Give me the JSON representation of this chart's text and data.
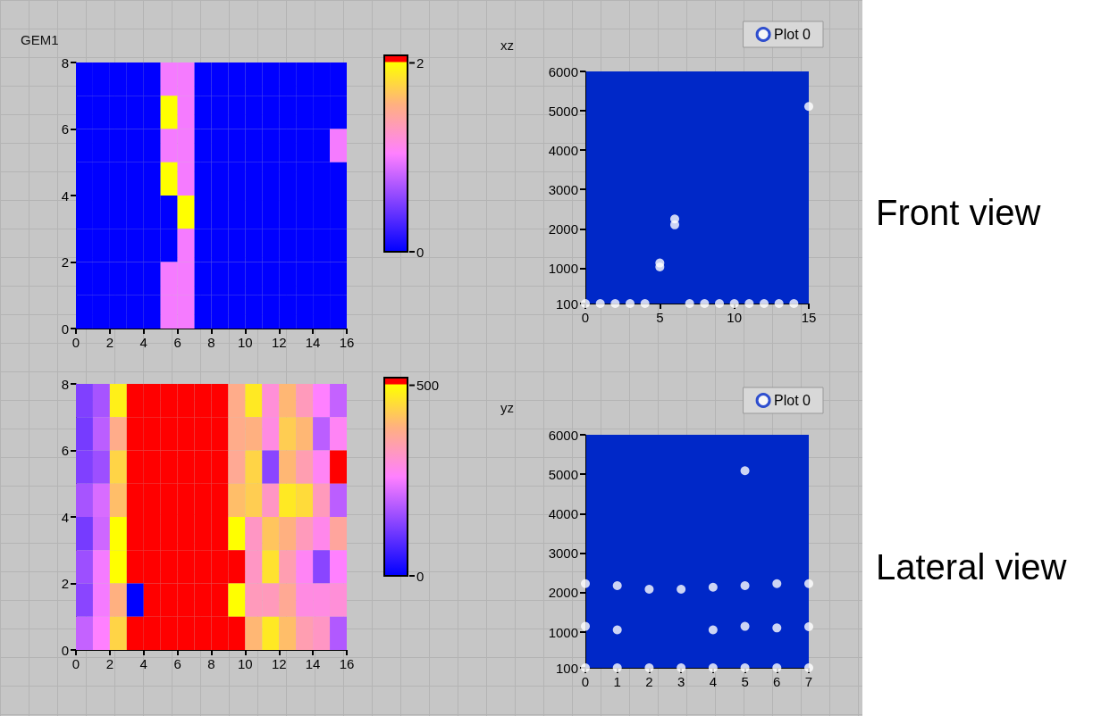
{
  "chart_data": [
    {
      "type": "heatmap",
      "title": "GEM1",
      "xlim": [
        0,
        16
      ],
      "xticks": [
        0,
        2,
        4,
        6,
        8,
        10,
        12,
        14,
        16
      ],
      "ylim": [
        0,
        8
      ],
      "yticks": [
        0,
        2,
        4,
        6,
        8
      ],
      "clim": [
        0,
        2.08
      ],
      "cticks": [
        0,
        2
      ],
      "cells": [
        [
          0,
          0,
          0,
          0,
          0,
          1,
          1,
          0,
          0,
          0,
          0,
          0,
          0,
          0,
          0,
          0
        ],
        [
          0,
          0,
          0,
          0,
          0,
          2,
          1,
          0,
          0,
          0,
          0,
          0,
          0,
          0,
          0,
          0
        ],
        [
          0,
          0,
          0,
          0,
          0,
          1,
          1,
          0,
          0,
          0,
          0,
          0,
          0,
          0,
          0,
          1
        ],
        [
          0,
          0,
          0,
          0,
          0,
          2,
          1,
          0,
          0,
          0,
          0,
          0,
          0,
          0,
          0,
          0
        ],
        [
          0,
          0,
          0,
          0,
          0,
          0,
          2,
          0,
          0,
          0,
          0,
          0,
          0,
          0,
          0,
          0
        ],
        [
          0,
          0,
          0,
          0,
          0,
          0,
          1,
          0,
          0,
          0,
          0,
          0,
          0,
          0,
          0,
          0
        ],
        [
          0,
          0,
          0,
          0,
          0,
          1,
          1,
          0,
          0,
          0,
          0,
          0,
          0,
          0,
          0,
          0
        ],
        [
          0,
          0,
          0,
          0,
          0,
          1,
          1,
          0,
          0,
          0,
          0,
          0,
          0,
          0,
          0,
          0
        ]
      ]
    },
    {
      "type": "heatmap",
      "xlim": [
        0,
        16
      ],
      "xticks": [
        0,
        2,
        4,
        6,
        8,
        10,
        12,
        14,
        16
      ],
      "ylim": [
        0,
        8
      ],
      "yticks": [
        0,
        2,
        4,
        6,
        8
      ],
      "clim": [
        0,
        520
      ],
      "cticks": [
        0,
        500
      ],
      "cells": [
        [
          130,
          170,
          480,
          520,
          520,
          520,
          520,
          520,
          520,
          380,
          470,
          300,
          400,
          330,
          260,
          200
        ],
        [
          120,
          190,
          380,
          520,
          520,
          520,
          520,
          520,
          520,
          380,
          390,
          290,
          430,
          400,
          190,
          270
        ],
        [
          130,
          160,
          440,
          520,
          520,
          520,
          520,
          520,
          520,
          370,
          440,
          140,
          400,
          340,
          270,
          520
        ],
        [
          170,
          220,
          410,
          520,
          520,
          520,
          520,
          520,
          520,
          410,
          430,
          320,
          470,
          450,
          330,
          190
        ],
        [
          120,
          210,
          500,
          520,
          520,
          520,
          520,
          520,
          520,
          500,
          320,
          420,
          390,
          330,
          280,
          360
        ],
        [
          160,
          250,
          500,
          520,
          520,
          520,
          520,
          520,
          520,
          520,
          320,
          460,
          340,
          270,
          140,
          260
        ],
        [
          140,
          250,
          390,
          0,
          520,
          520,
          520,
          520,
          520,
          500,
          330,
          330,
          370,
          290,
          290,
          300
        ],
        [
          200,
          260,
          440,
          520,
          520,
          520,
          520,
          520,
          520,
          520,
          400,
          470,
          410,
          340,
          320,
          180
        ]
      ]
    },
    {
      "type": "scatter",
      "title": "xz",
      "xlim": [
        0,
        15
      ],
      "xticks": [
        0,
        5,
        10,
        15
      ],
      "ylim": [
        100,
        6000
      ],
      "yticks": [
        100,
        1000,
        2000,
        3000,
        4000,
        5000,
        6000
      ],
      "legend": "top right",
      "marker": "circle",
      "annotations": [
        "Front view"
      ],
      "series": [
        {
          "name": "Plot 0",
          "color": "#ffffff",
          "x": [
            0,
            1,
            2,
            3,
            4,
            7,
            8,
            9,
            10,
            11,
            12,
            13,
            14,
            5,
            5,
            6,
            6,
            15
          ],
          "values": [
            100,
            100,
            100,
            100,
            100,
            100,
            100,
            100,
            100,
            100,
            100,
            100,
            100,
            1030,
            1130,
            2100,
            2250,
            5110
          ]
        }
      ]
    },
    {
      "type": "scatter",
      "title": "yz",
      "xlim": [
        0,
        7
      ],
      "xticks": [
        0,
        1,
        2,
        3,
        4,
        5,
        6,
        7
      ],
      "ylim": [
        100,
        6000
      ],
      "yticks": [
        100,
        1000,
        2000,
        3000,
        4000,
        5000,
        6000
      ],
      "legend": "top right",
      "marker": "circle",
      "annotations": [
        "Lateral view"
      ],
      "series": [
        {
          "name": "Plot 0",
          "color": "#ffffff",
          "x": [
            0,
            1,
            2,
            3,
            4,
            5,
            6,
            7,
            0,
            0,
            1,
            1,
            2,
            3,
            4,
            4,
            5,
            5,
            5,
            6,
            6,
            7,
            7
          ],
          "values": [
            100,
            100,
            100,
            100,
            100,
            100,
            100,
            100,
            2230,
            1150,
            2180,
            1060,
            2090,
            2090,
            2140,
            1060,
            5090,
            2180,
            1150,
            2230,
            1110,
            2230,
            1140
          ]
        }
      ]
    }
  ]
}
